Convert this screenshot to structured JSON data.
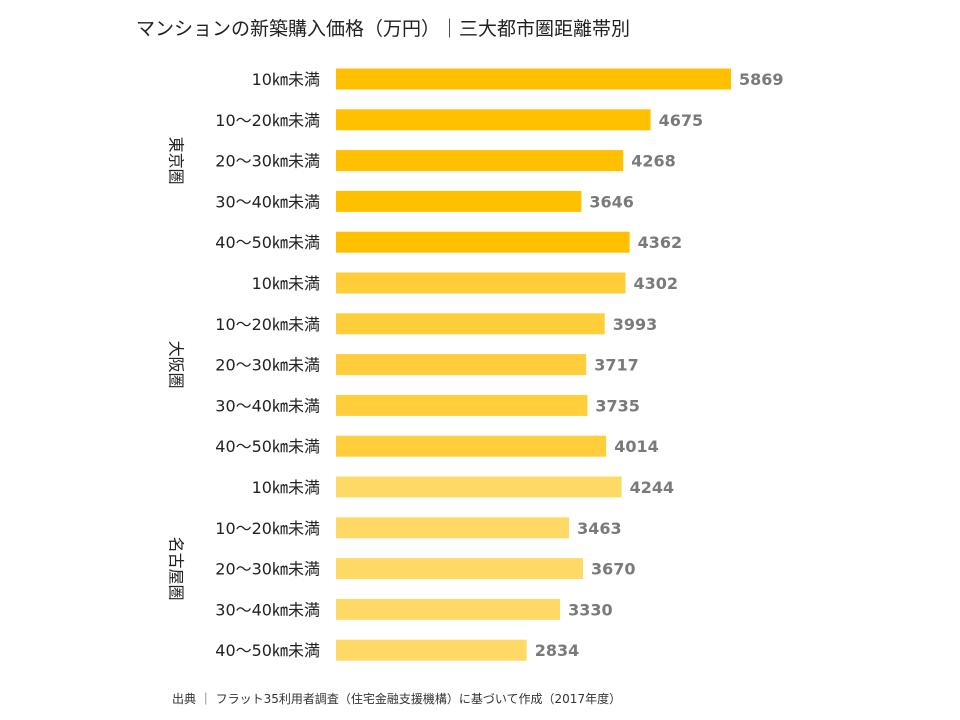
{
  "title": "マンションの新築購入価格（万円）｜三大都市圏距離帯別",
  "source": "出典 ｜ フラット35利用者調査（住宅金融支援機構）に基づいて作成（2017年度）",
  "colors": {
    "tokyo": "#FFC000",
    "osaka": "#FFCE3A",
    "nagoya": "#FFD966",
    "value_text": "#7a7a7a"
  },
  "chart_data": {
    "type": "bar",
    "orientation": "horizontal",
    "groups": [
      {
        "name": "東京圏",
        "categories": [
          "10㎞未満",
          "10～20㎞未満",
          "20～30㎞未満",
          "30～40㎞未満",
          "40～50㎞未満"
        ],
        "values": [
          5869,
          4675,
          4268,
          3646,
          4362
        ]
      },
      {
        "name": "大阪圏",
        "categories": [
          "10㎞未満",
          "10～20㎞未満",
          "20～30㎞未満",
          "30～40㎞未満",
          "40～50㎞未満"
        ],
        "values": [
          4302,
          3993,
          3717,
          3735,
          4014
        ]
      },
      {
        "name": "名古屋圏",
        "categories": [
          "10㎞未満",
          "10～20㎞未満",
          "20～30㎞未満",
          "30～40㎞未満",
          "40～50㎞未満"
        ],
        "values": [
          4244,
          3463,
          3670,
          3330,
          2834
        ]
      }
    ],
    "xlim": [
      0,
      6000
    ],
    "grid": false,
    "data_labels": true
  }
}
